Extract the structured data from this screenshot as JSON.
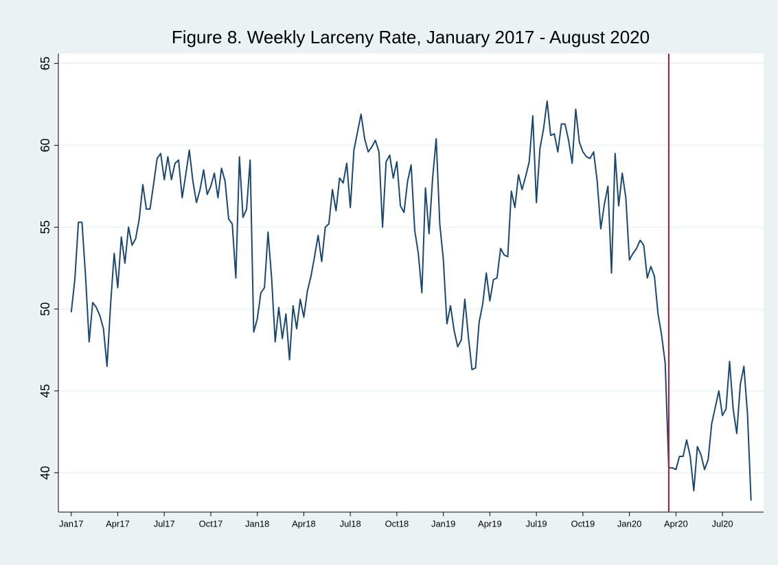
{
  "chart_data": {
    "type": "line",
    "title": "Figure 8. Weekly Larceny Rate, January 2017 - August 2020",
    "x": [
      0,
      1,
      2,
      3,
      4,
      5,
      6,
      7,
      8,
      9,
      10,
      11,
      12,
      13,
      14,
      15,
      16,
      17,
      18,
      19,
      20,
      21,
      22,
      23,
      24,
      25,
      26,
      27,
      28,
      29,
      30,
      31,
      32,
      33,
      34,
      35,
      36,
      37,
      38,
      39,
      40,
      41,
      42,
      43,
      44,
      45,
      46,
      47,
      48,
      49,
      50,
      51,
      52,
      53,
      54,
      55,
      56,
      57,
      58,
      59,
      60,
      61,
      62,
      63,
      64,
      65,
      66,
      67,
      68,
      69,
      70,
      71,
      72,
      73,
      74,
      75,
      76,
      77,
      78,
      79,
      80,
      81,
      82,
      83,
      84,
      85,
      86,
      87,
      88,
      89,
      90,
      91,
      92,
      93,
      94,
      95,
      96,
      97,
      98,
      99,
      100,
      101,
      102,
      103,
      104,
      105,
      106,
      107,
      108,
      109,
      110,
      111,
      112,
      113,
      114,
      115,
      116,
      117,
      118,
      119,
      120,
      121,
      122,
      123,
      124,
      125,
      126,
      127,
      128,
      129,
      130,
      131,
      132,
      133,
      134,
      135,
      136,
      137,
      138,
      139,
      140,
      141,
      142,
      143,
      144,
      145,
      146,
      147,
      148,
      149,
      150,
      151,
      152,
      153,
      154,
      155,
      156,
      157,
      158,
      159,
      160,
      161,
      162,
      163,
      164,
      165,
      166,
      167,
      168,
      169,
      170,
      171,
      172,
      173,
      174,
      175,
      176,
      177,
      178,
      179,
      180,
      181,
      182,
      183,
      184,
      185,
      186,
      187,
      188,
      189,
      190
    ],
    "series": [
      {
        "color": "#1a476f",
        "values": [
          49.8,
          51.8,
          55.3,
          55.3,
          52,
          48,
          50.4,
          50.1,
          49.6,
          48.8,
          46.5,
          50.3,
          53.4,
          51.3,
          54.4,
          52.8,
          55,
          53.9,
          54.3,
          55.5,
          57.6,
          56.1,
          56.1,
          57.6,
          59.2,
          59.5,
          57.9,
          59.3,
          57.9,
          58.9,
          59.1,
          56.8,
          58.2,
          59.7,
          57.8,
          56.5,
          57.3,
          58.5,
          57,
          57.5,
          58.3,
          56.8,
          58.6,
          57.8,
          55.5,
          55.2,
          51.9,
          59.3,
          55.6,
          56.1,
          59.1,
          48.6,
          49.4,
          51,
          51.3,
          54.7,
          51.9,
          48,
          50.1,
          48.2,
          49.7,
          46.9,
          50.2,
          48.8,
          50.6,
          49.5,
          51.1,
          52,
          53.2,
          54.5,
          52.9,
          55,
          55.2,
          57.3,
          56,
          58,
          57.7,
          58.9,
          56.2,
          59.7,
          60.8,
          61.9,
          60.4,
          59.6,
          59.9,
          60.3,
          59.6,
          55,
          59,
          59.4,
          58,
          59,
          56.3,
          55.9,
          57.8,
          58.8,
          54.8,
          53.4,
          51,
          57.4,
          54.6,
          58,
          60.4,
          55.2,
          53,
          49.1,
          50.2,
          48.7,
          47.7,
          48.1,
          50.6,
          48.3,
          46.3,
          46.4,
          49.2,
          50.3,
          52.2,
          50.5,
          51.8,
          51.9,
          53.7,
          53.3,
          53.2,
          57.2,
          56.2,
          58.2,
          57.3,
          58.1,
          59,
          61.8,
          56.5,
          59.8,
          61,
          62.7,
          60.6,
          60.7,
          59.6,
          61.3,
          61.3,
          60.3,
          58.9,
          62.2,
          60.2,
          59.6,
          59.3,
          59.2,
          59.6,
          57.8,
          54.9,
          56.4,
          57.5,
          52.2,
          59.5,
          56.3,
          58.3,
          56.8,
          53,
          53.4,
          53.7,
          54.2,
          53.9,
          51.9,
          52.6,
          52,
          49.7,
          48.4,
          46.7,
          40.3,
          40.3,
          40.2,
          41,
          41,
          42,
          41,
          38.9,
          41.6,
          41.1,
          40.2,
          40.8,
          43,
          44,
          45,
          43.5,
          43.9,
          46.8,
          43.9,
          42.4,
          45.4,
          46.5,
          43.6,
          38.3
        ]
      }
    ],
    "xlim": [
      -3.6,
      193.5
    ],
    "xticks": [
      {
        "value": 0,
        "label": "Jan17"
      },
      {
        "value": 13,
        "label": "Apr17"
      },
      {
        "value": 26,
        "label": "Jul17"
      },
      {
        "value": 39,
        "label": "Oct17"
      },
      {
        "value": 52,
        "label": "Jan18"
      },
      {
        "value": 65,
        "label": "Apr18"
      },
      {
        "value": 78,
        "label": "Jul18"
      },
      {
        "value": 91,
        "label": "Oct18"
      },
      {
        "value": 104,
        "label": "Jan19"
      },
      {
        "value": 117,
        "label": "Apr19"
      },
      {
        "value": 130,
        "label": "Jul19"
      },
      {
        "value": 143,
        "label": "Oct19"
      },
      {
        "value": 156,
        "label": "Jan20"
      },
      {
        "value": 169,
        "label": "Apr20"
      },
      {
        "value": 182,
        "label": "Jul20"
      }
    ],
    "ylim": [
      37.6,
      65.6
    ],
    "yticks": [
      40,
      45,
      50,
      55,
      60,
      65
    ],
    "grid": true,
    "vline": {
      "x": 167,
      "color": "#b2182b"
    }
  }
}
